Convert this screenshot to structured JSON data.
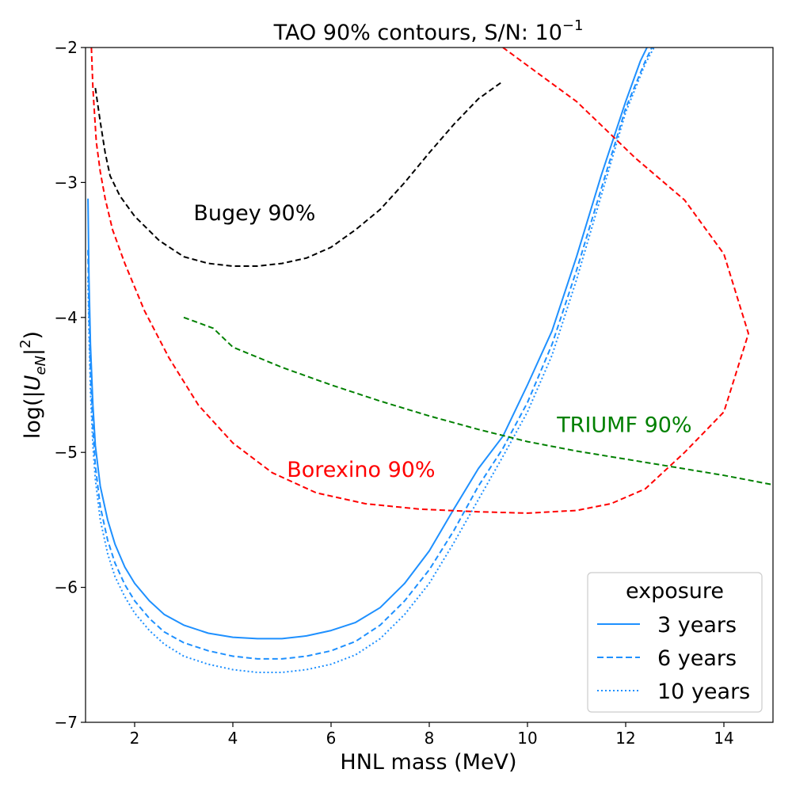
{
  "chart_data": {
    "type": "line",
    "title_prefix": "TAO 90% contours, S/N: 10",
    "title_exponent": "−1",
    "xlabel": "HNL mass (MeV)",
    "ylabel_prefix": "log(|",
    "ylabel_var": "U",
    "ylabel_sub": "eN",
    "ylabel_suffix": "|",
    "ylabel_sup": "2",
    "ylabel_close": ")",
    "xlim": [
      1.0,
      15.0
    ],
    "ylim": [
      -7.0,
      -2.0
    ],
    "x_ticks": [
      {
        "value": 2,
        "label": "2"
      },
      {
        "value": 4,
        "label": "4"
      },
      {
        "value": 6,
        "label": "6"
      },
      {
        "value": 8,
        "label": "8"
      },
      {
        "value": 10,
        "label": "10"
      },
      {
        "value": 12,
        "label": "12"
      },
      {
        "value": 14,
        "label": "14"
      }
    ],
    "y_ticks": [
      {
        "value": -2,
        "label": "−2"
      },
      {
        "value": -3,
        "label": "−3"
      },
      {
        "value": -4,
        "label": "−4"
      },
      {
        "value": -5,
        "label": "−5"
      },
      {
        "value": -6,
        "label": "−6"
      },
      {
        "value": -7,
        "label": "−7"
      }
    ],
    "series": [
      {
        "name": "3 years",
        "color": "#1e90ff",
        "dash": "solid",
        "x": [
          1.05,
          1.07,
          1.1,
          1.15,
          1.2,
          1.3,
          1.45,
          1.6,
          1.8,
          2.0,
          2.3,
          2.6,
          3.0,
          3.5,
          4.0,
          4.5,
          5.0,
          5.5,
          6.0,
          6.5,
          7.0,
          7.5,
          8.0,
          8.5,
          9.0,
          9.5,
          10.0,
          10.5,
          11.0,
          11.5,
          12.0,
          12.3,
          12.5
        ],
        "y": [
          -3.12,
          -3.7,
          -4.2,
          -4.65,
          -4.95,
          -5.25,
          -5.5,
          -5.68,
          -5.85,
          -5.97,
          -6.1,
          -6.2,
          -6.28,
          -6.34,
          -6.37,
          -6.38,
          -6.38,
          -6.36,
          -6.32,
          -6.26,
          -6.15,
          -5.97,
          -5.73,
          -5.42,
          -5.12,
          -4.88,
          -4.5,
          -4.1,
          -3.55,
          -2.95,
          -2.4,
          -2.1,
          -1.95
        ]
      },
      {
        "name": "6 years",
        "color": "#1e90ff",
        "dash": "dashed",
        "x": [
          1.05,
          1.07,
          1.1,
          1.15,
          1.2,
          1.3,
          1.45,
          1.6,
          1.8,
          2.0,
          2.3,
          2.6,
          3.0,
          3.5,
          4.0,
          4.5,
          5.0,
          5.5,
          6.0,
          6.5,
          7.0,
          7.5,
          8.0,
          8.5,
          9.0,
          9.5,
          10.0,
          10.5,
          11.0,
          11.5,
          12.0,
          12.4,
          12.6
        ],
        "y": [
          -3.5,
          -3.95,
          -4.4,
          -4.82,
          -5.1,
          -5.4,
          -5.65,
          -5.82,
          -5.98,
          -6.1,
          -6.23,
          -6.33,
          -6.41,
          -6.47,
          -6.51,
          -6.53,
          -6.53,
          -6.51,
          -6.47,
          -6.4,
          -6.28,
          -6.1,
          -5.87,
          -5.58,
          -5.25,
          -4.97,
          -4.63,
          -4.2,
          -3.65,
          -3.05,
          -2.45,
          -2.1,
          -1.95
        ]
      },
      {
        "name": "10 years",
        "color": "#1e90ff",
        "dash": "dotted",
        "x": [
          1.05,
          1.07,
          1.1,
          1.15,
          1.2,
          1.3,
          1.45,
          1.6,
          1.8,
          2.0,
          2.3,
          2.6,
          3.0,
          3.5,
          4.0,
          4.5,
          5.0,
          5.5,
          6.0,
          6.5,
          7.0,
          7.5,
          8.0,
          8.5,
          9.0,
          9.5,
          10.0,
          10.5,
          11.0,
          11.5,
          12.0,
          12.4,
          12.65
        ],
        "y": [
          -3.7,
          -4.1,
          -4.55,
          -4.95,
          -5.2,
          -5.5,
          -5.75,
          -5.92,
          -6.07,
          -6.19,
          -6.32,
          -6.42,
          -6.51,
          -6.57,
          -6.61,
          -6.63,
          -6.63,
          -6.61,
          -6.57,
          -6.5,
          -6.38,
          -6.2,
          -5.97,
          -5.67,
          -5.35,
          -5.03,
          -4.7,
          -4.28,
          -3.72,
          -3.1,
          -2.48,
          -2.12,
          -1.95
        ]
      },
      {
        "name": "Bugey 90%",
        "color": "#000000",
        "dash": "dashed",
        "x": [
          1.2,
          1.3,
          1.4,
          1.5,
          1.7,
          2.0,
          2.5,
          3.0,
          3.5,
          4.0,
          4.5,
          5.0,
          5.5,
          6.0,
          6.5,
          7.0,
          7.5,
          8.0,
          8.5,
          9.0,
          9.5
        ],
        "y": [
          -2.3,
          -2.55,
          -2.78,
          -2.95,
          -3.1,
          -3.25,
          -3.43,
          -3.55,
          -3.6,
          -3.62,
          -3.62,
          -3.6,
          -3.56,
          -3.48,
          -3.35,
          -3.2,
          -3.0,
          -2.78,
          -2.57,
          -2.38,
          -2.25
        ]
      },
      {
        "name": "Borexino 90%",
        "color": "#ff0000",
        "dash": "dashed",
        "x": [
          1.12,
          1.15,
          1.22,
          1.3,
          1.4,
          1.55,
          1.8,
          2.2,
          2.7,
          3.3,
          4.0,
          4.8,
          5.7,
          6.7,
          7.8,
          9.0,
          10.0,
          11.0,
          11.7,
          12.4,
          13.2,
          14.0,
          14.5,
          14.0,
          13.2,
          12.2,
          11.0,
          9.5
        ],
        "y": [
          -2.0,
          -2.3,
          -2.7,
          -2.92,
          -3.12,
          -3.35,
          -3.6,
          -3.95,
          -4.3,
          -4.65,
          -4.93,
          -5.15,
          -5.3,
          -5.38,
          -5.42,
          -5.44,
          -5.45,
          -5.43,
          -5.38,
          -5.27,
          -5.0,
          -4.7,
          -4.12,
          -3.53,
          -3.13,
          -2.82,
          -2.4,
          -2.0
        ]
      },
      {
        "name": "TRIUMF 90%",
        "color": "#008000",
        "dash": "dashed",
        "x": [
          3.0,
          3.6,
          4.0,
          5.0,
          6.0,
          7.0,
          8.0,
          9.0,
          10.0,
          11.0,
          12.0,
          13.0,
          14.0,
          15.0
        ],
        "y": [
          -4.0,
          -4.08,
          -4.22,
          -4.37,
          -4.5,
          -4.62,
          -4.73,
          -4.83,
          -4.92,
          -4.99,
          -5.05,
          -5.11,
          -5.17,
          -5.24
        ]
      }
    ],
    "annotations": [
      {
        "text": "Bugey 90%",
        "x": 3.2,
        "y": -3.28,
        "color": "#000000"
      },
      {
        "text": "Borexino 90%",
        "x": 5.1,
        "y": -5.18,
        "color": "#ff0000"
      },
      {
        "text": "TRIUMF 90%",
        "x": 10.6,
        "y": -4.85,
        "color": "#008000"
      }
    ],
    "legend": {
      "title": "exposure",
      "location": "bottom-right",
      "entries": [
        {
          "label": "3 years",
          "color": "#1e90ff",
          "dash": "solid"
        },
        {
          "label": "6 years",
          "color": "#1e90ff",
          "dash": "dashed"
        },
        {
          "label": "10 years",
          "color": "#1e90ff",
          "dash": "dotted"
        }
      ]
    }
  }
}
